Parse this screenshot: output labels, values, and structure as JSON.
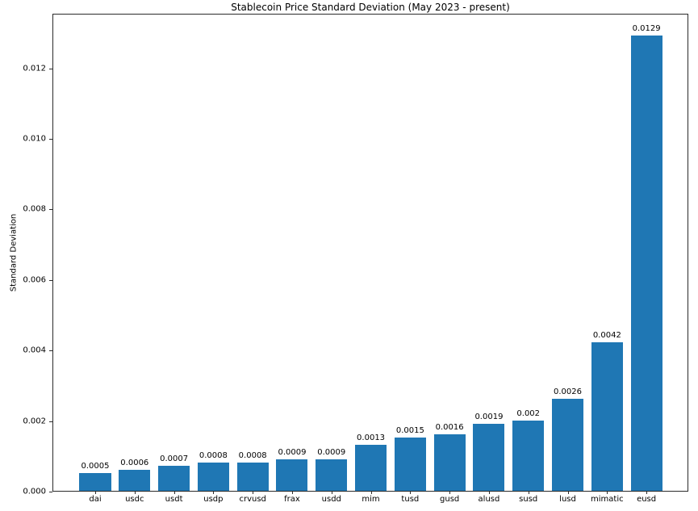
{
  "chart_data": {
    "type": "bar",
    "title": "Stablecoin Price Standard Deviation (May 2023 - present)",
    "xlabel": "",
    "ylabel": "Standard Deviation",
    "categories": [
      "dai",
      "usdc",
      "usdt",
      "usdp",
      "crvusd",
      "frax",
      "usdd",
      "mim",
      "tusd",
      "gusd",
      "alusd",
      "susd",
      "lusd",
      "mimatic",
      "eusd"
    ],
    "values": [
      0.0005,
      0.0006,
      0.0007,
      0.0008,
      0.0008,
      0.0009,
      0.0009,
      0.0013,
      0.0015,
      0.0016,
      0.0019,
      0.002,
      0.0026,
      0.0042,
      0.0129
    ],
    "value_labels": [
      "0.0005",
      "0.0006",
      "0.0007",
      "0.0008",
      "0.0008",
      "0.0009",
      "0.0009",
      "0.0013",
      "0.0015",
      "0.0016",
      "0.0019",
      "0.002",
      "0.0026",
      "0.0042",
      "0.0129"
    ],
    "yticks": [
      0.0,
      0.002,
      0.004,
      0.006,
      0.008,
      0.01,
      0.012
    ],
    "ytick_labels": [
      "0.000",
      "0.002",
      "0.004",
      "0.006",
      "0.008",
      "0.010",
      "0.012"
    ],
    "ylim": [
      0,
      0.013545
    ],
    "grid": false,
    "legend_position": "none",
    "bar_color": "#1f77b4",
    "spine_color": "#2b2b2b",
    "text_color": "#000000",
    "background_color": "#ffffff"
  }
}
